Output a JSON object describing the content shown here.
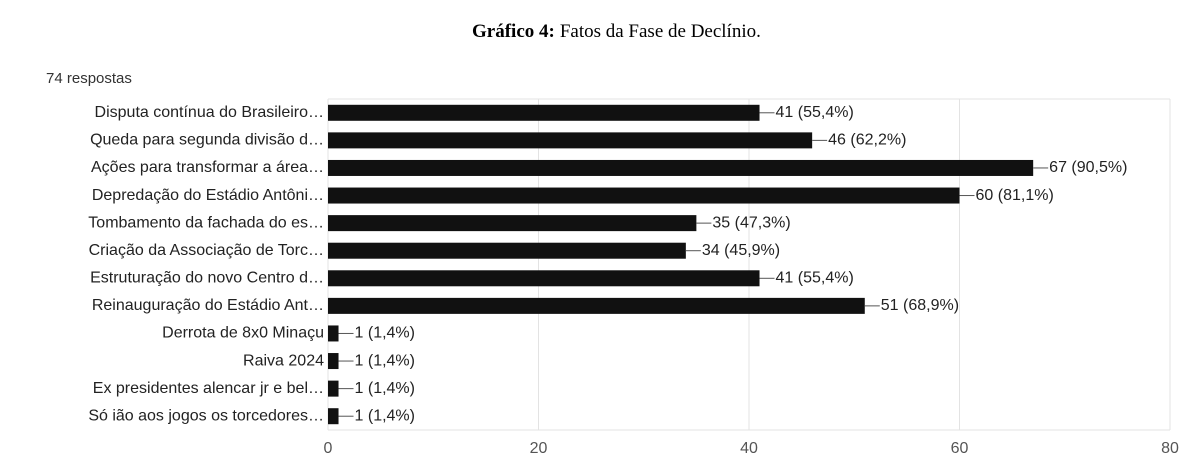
{
  "chart_data": {
    "type": "barh",
    "title_label": "Gráfico 4:",
    "title": "Fatos da Fase de Declínio.",
    "subtitle": "74 respostas",
    "categories": [
      "Disputa contínua do Brasileiro…",
      "Queda para segunda divisão d…",
      "Ações para transformar a área…",
      "Depredação do Estádio Antôni…",
      "Tombamento da fachada do es…",
      "Criação da Associação de Torc…",
      "Estruturação do novo Centro d…",
      "Reinauguração do Estádio Ant…",
      "Derrota de 8x0 Minaçu",
      "Raiva 2024",
      "Ex presidentes alencar jr e bel…",
      "Só ião aos jogos os torcedores…"
    ],
    "values": [
      41,
      46,
      67,
      60,
      35,
      34,
      41,
      51,
      1,
      1,
      1,
      1
    ],
    "value_labels": [
      "41 (55,4%)",
      "46 (62,2%)",
      "67 (90,5%)",
      "60 (81,1%)",
      "35 (47,3%)",
      "34 (45,9%)",
      "41 (55,4%)",
      "51 (68,9%)",
      "1 (1,4%)",
      "1 (1,4%)",
      "1 (1,4%)",
      "1 (1,4%)"
    ],
    "color": "#111111",
    "xlim": [
      0,
      80
    ],
    "xticks": [
      0,
      20,
      40,
      60,
      80
    ],
    "grid": true
  }
}
